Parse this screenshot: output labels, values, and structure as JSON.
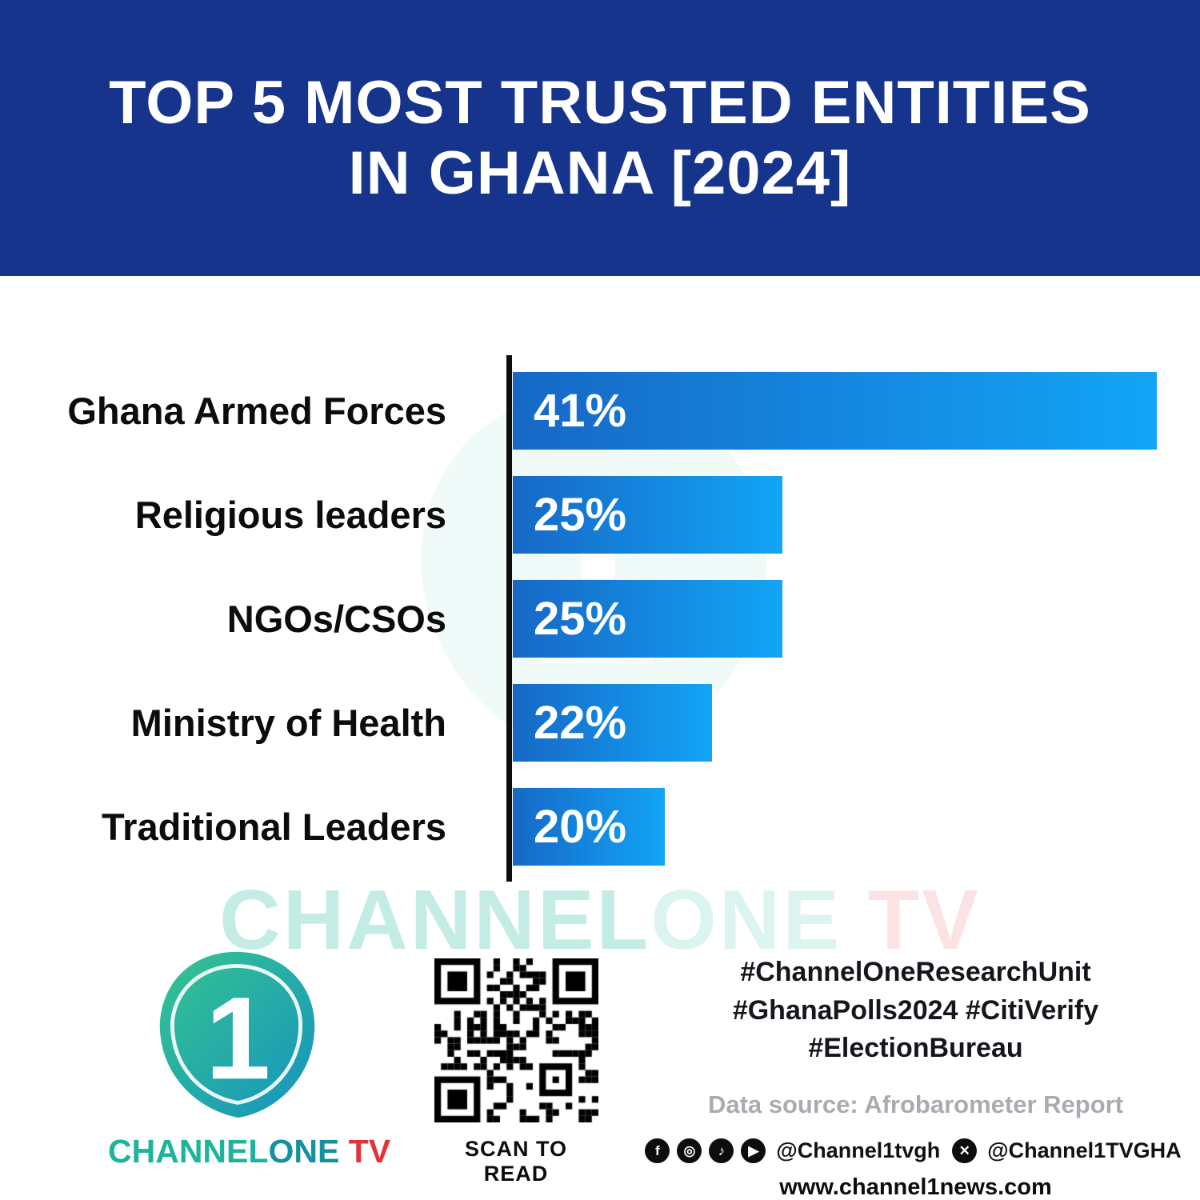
{
  "header": {
    "title_line1": "TOP 5 MOST TRUSTED ENTITIES",
    "title_line2": "IN GHANA [2024]"
  },
  "chart_data": {
    "type": "bar",
    "orientation": "horizontal",
    "title": "Top 5 Most Trusted Entities in Ghana [2024]",
    "categories": [
      "Ghana Armed Forces",
      "Religious leaders",
      "NGOs/CSOs",
      "Ministry of Health",
      "Traditional Leaders"
    ],
    "values": [
      41,
      25,
      25,
      22,
      20
    ],
    "value_labels": [
      "41%",
      "25%",
      "25%",
      "22%",
      "20%"
    ],
    "xlabel": "",
    "ylabel": "",
    "xlim": [
      13.5,
      41.5
    ],
    "grid": false,
    "legend": false,
    "bar_color_start": "#1668c6",
    "bar_color_end": "#12a5f6",
    "axis_color": "#0d0d0d"
  },
  "watermark": {
    "part1": "CHANNEL",
    "part2": "ONE",
    "part3": " TV"
  },
  "footer": {
    "wordmark": {
      "channel": "CHANNEL",
      "one": "ONE",
      "tv": " TV"
    },
    "qr_caption": "SCAN TO READ",
    "hashtags": [
      "#ChannelOneResearchUnit",
      "#GhanaPolls2024 #CitiVerify",
      "#ElectionBureau"
    ],
    "data_source": "Data source: Afrobarometer Report",
    "social_handle_1": "@Channel1tvgh",
    "social_handle_2": "@Channel1TVGHA",
    "website": "www.channel1news.com"
  },
  "colors": {
    "header_bg": "#16348c",
    "accent_red": "#e53238",
    "brand_teal": "#1cb49b"
  }
}
